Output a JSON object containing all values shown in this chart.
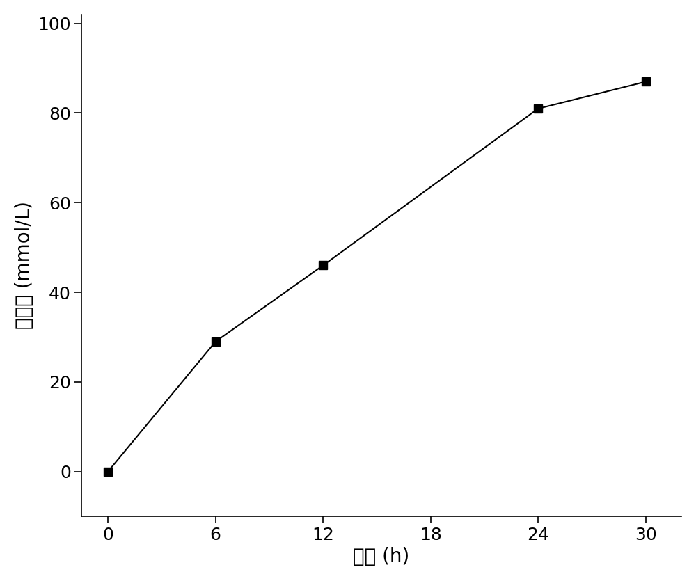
{
  "x": [
    0,
    6,
    12,
    24,
    30
  ],
  "y": [
    0,
    29,
    46,
    81,
    87
  ],
  "xlabel": "时间 (h)",
  "ylabel": "乙偶姻 (mmol/L)",
  "xlim": [
    -1.5,
    32
  ],
  "ylim": [
    -10,
    102
  ],
  "xticks": [
    0,
    6,
    12,
    18,
    24,
    30
  ],
  "yticks": [
    0,
    20,
    40,
    60,
    80,
    100
  ],
  "line_color": "#000000",
  "marker": "s",
  "marker_color": "#000000",
  "marker_size": 8,
  "line_width": 1.5,
  "background_color": "#ffffff",
  "label_fontsize": 20,
  "tick_fontsize": 18
}
